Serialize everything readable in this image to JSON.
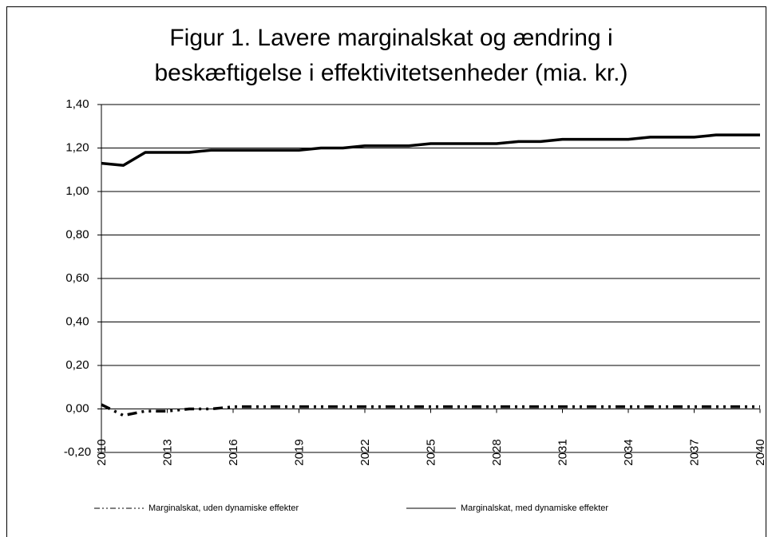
{
  "chart_data": {
    "type": "line",
    "title": "Figur 1. Lavere marginalskat og ændring i beskæftigelse i effektivitetsenheder (mia. kr.)",
    "x": [
      2010,
      2011,
      2012,
      2013,
      2014,
      2015,
      2016,
      2017,
      2018,
      2019,
      2020,
      2021,
      2022,
      2023,
      2024,
      2025,
      2026,
      2027,
      2028,
      2029,
      2030,
      2031,
      2032,
      2033,
      2034,
      2035,
      2036,
      2037,
      2038,
      2039,
      2040
    ],
    "xlim": [
      2010,
      2040
    ],
    "xticks": [
      2010,
      2013,
      2016,
      2019,
      2022,
      2025,
      2028,
      2031,
      2034,
      2037,
      2040
    ],
    "ylim": [
      -0.2,
      1.4
    ],
    "yticks": [
      {
        "value": -0.2,
        "label": "-0,20"
      },
      {
        "value": 0,
        "label": "0,00"
      },
      {
        "value": 0.2,
        "label": "0,20"
      },
      {
        "value": 0.4,
        "label": "0,40"
      },
      {
        "value": 0.6,
        "label": "0,60"
      },
      {
        "value": 0.8,
        "label": "0,80"
      },
      {
        "value": 1.0,
        "label": "1,00"
      },
      {
        "value": 1.2,
        "label": "1,20"
      },
      {
        "value": 1.4,
        "label": "1,40"
      }
    ],
    "grid": true,
    "legend": "bottom",
    "series": [
      {
        "name": "Marginalskat, uden dynamiske effekter",
        "color": "#000000",
        "dash": "dash-dot-dot",
        "values": [
          0.02,
          -0.03,
          -0.01,
          -0.01,
          0.0,
          0.0,
          0.01,
          0.01,
          0.01,
          0.01,
          0.01,
          0.01,
          0.01,
          0.01,
          0.01,
          0.01,
          0.01,
          0.01,
          0.01,
          0.01,
          0.01,
          0.01,
          0.01,
          0.01,
          0.01,
          0.01,
          0.01,
          0.01,
          0.01,
          0.01,
          0.01
        ]
      },
      {
        "name": "Marginalskat, med dynamiske effekter",
        "color": "#000000",
        "dash": "solid",
        "values": [
          1.13,
          1.12,
          1.18,
          1.18,
          1.18,
          1.19,
          1.19,
          1.19,
          1.19,
          1.19,
          1.2,
          1.2,
          1.21,
          1.21,
          1.21,
          1.22,
          1.22,
          1.22,
          1.22,
          1.23,
          1.23,
          1.24,
          1.24,
          1.24,
          1.24,
          1.25,
          1.25,
          1.25,
          1.26,
          1.26,
          1.26
        ]
      }
    ]
  }
}
